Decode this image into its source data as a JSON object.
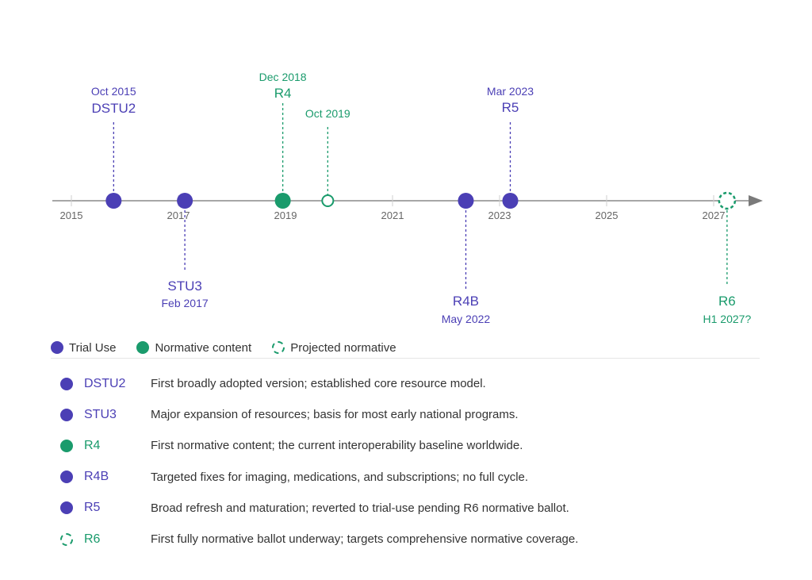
{
  "colors": {
    "trial_use": "#4b3fb5",
    "normative": "#1a9b6c",
    "axis": "#888888"
  },
  "timeline": {
    "axis_years": [
      "2015",
      "2017",
      "2019",
      "2021",
      "2023",
      "2025",
      "2027"
    ],
    "events": [
      {
        "id": "dstu2",
        "name": "DSTU2",
        "date": "Oct 2015",
        "year_value": 2015.79,
        "kind": "trial",
        "position": "above",
        "marker": "filled"
      },
      {
        "id": "stu3",
        "name": "STU3",
        "date": "Feb 2017",
        "year_value": 2017.12,
        "kind": "trial",
        "position": "below",
        "marker": "filled"
      },
      {
        "id": "r4",
        "name": "R4",
        "date": "Dec 2018",
        "year_value": 2018.95,
        "kind": "normative",
        "position": "above",
        "marker": "filled"
      },
      {
        "id": "oct2019",
        "name": "",
        "date": "Oct 2019",
        "year_value": 2019.79,
        "kind": "normative",
        "position": "above",
        "marker": "hollow"
      },
      {
        "id": "r4b",
        "name": "R4B",
        "date": "May 2022",
        "year_value": 2022.37,
        "kind": "trial",
        "position": "below",
        "marker": "filled"
      },
      {
        "id": "r5",
        "name": "R5",
        "date": "Mar 2023",
        "year_value": 2023.2,
        "kind": "trial",
        "position": "above",
        "marker": "filled"
      },
      {
        "id": "r6",
        "name": "R6",
        "date": "H1 2027?",
        "year_value": 2027.25,
        "kind": "normative",
        "position": "below",
        "marker": "projected"
      }
    ]
  },
  "legend": {
    "trial": "Trial Use",
    "normative": "Normative content",
    "projected": "Projected normative"
  },
  "versions": [
    {
      "name": "DSTU2",
      "kind": "trial",
      "description": "First broadly adopted version; established core resource model."
    },
    {
      "name": "STU3",
      "kind": "trial",
      "description": "Major expansion of resources; basis for most early national programs."
    },
    {
      "name": "R4",
      "kind": "normative",
      "description": "First normative content; the current interoperability baseline worldwide."
    },
    {
      "name": "R4B",
      "kind": "trial",
      "description": "Targeted fixes for imaging, medications, and subscriptions; no full cycle."
    },
    {
      "name": "R5",
      "kind": "trial",
      "description": "Broad refresh and maturation; reverted to trial-use pending R6 normative ballot."
    },
    {
      "name": "R6",
      "kind": "projected",
      "description": "First fully normative ballot underway; targets comprehensive normative coverage."
    }
  ]
}
